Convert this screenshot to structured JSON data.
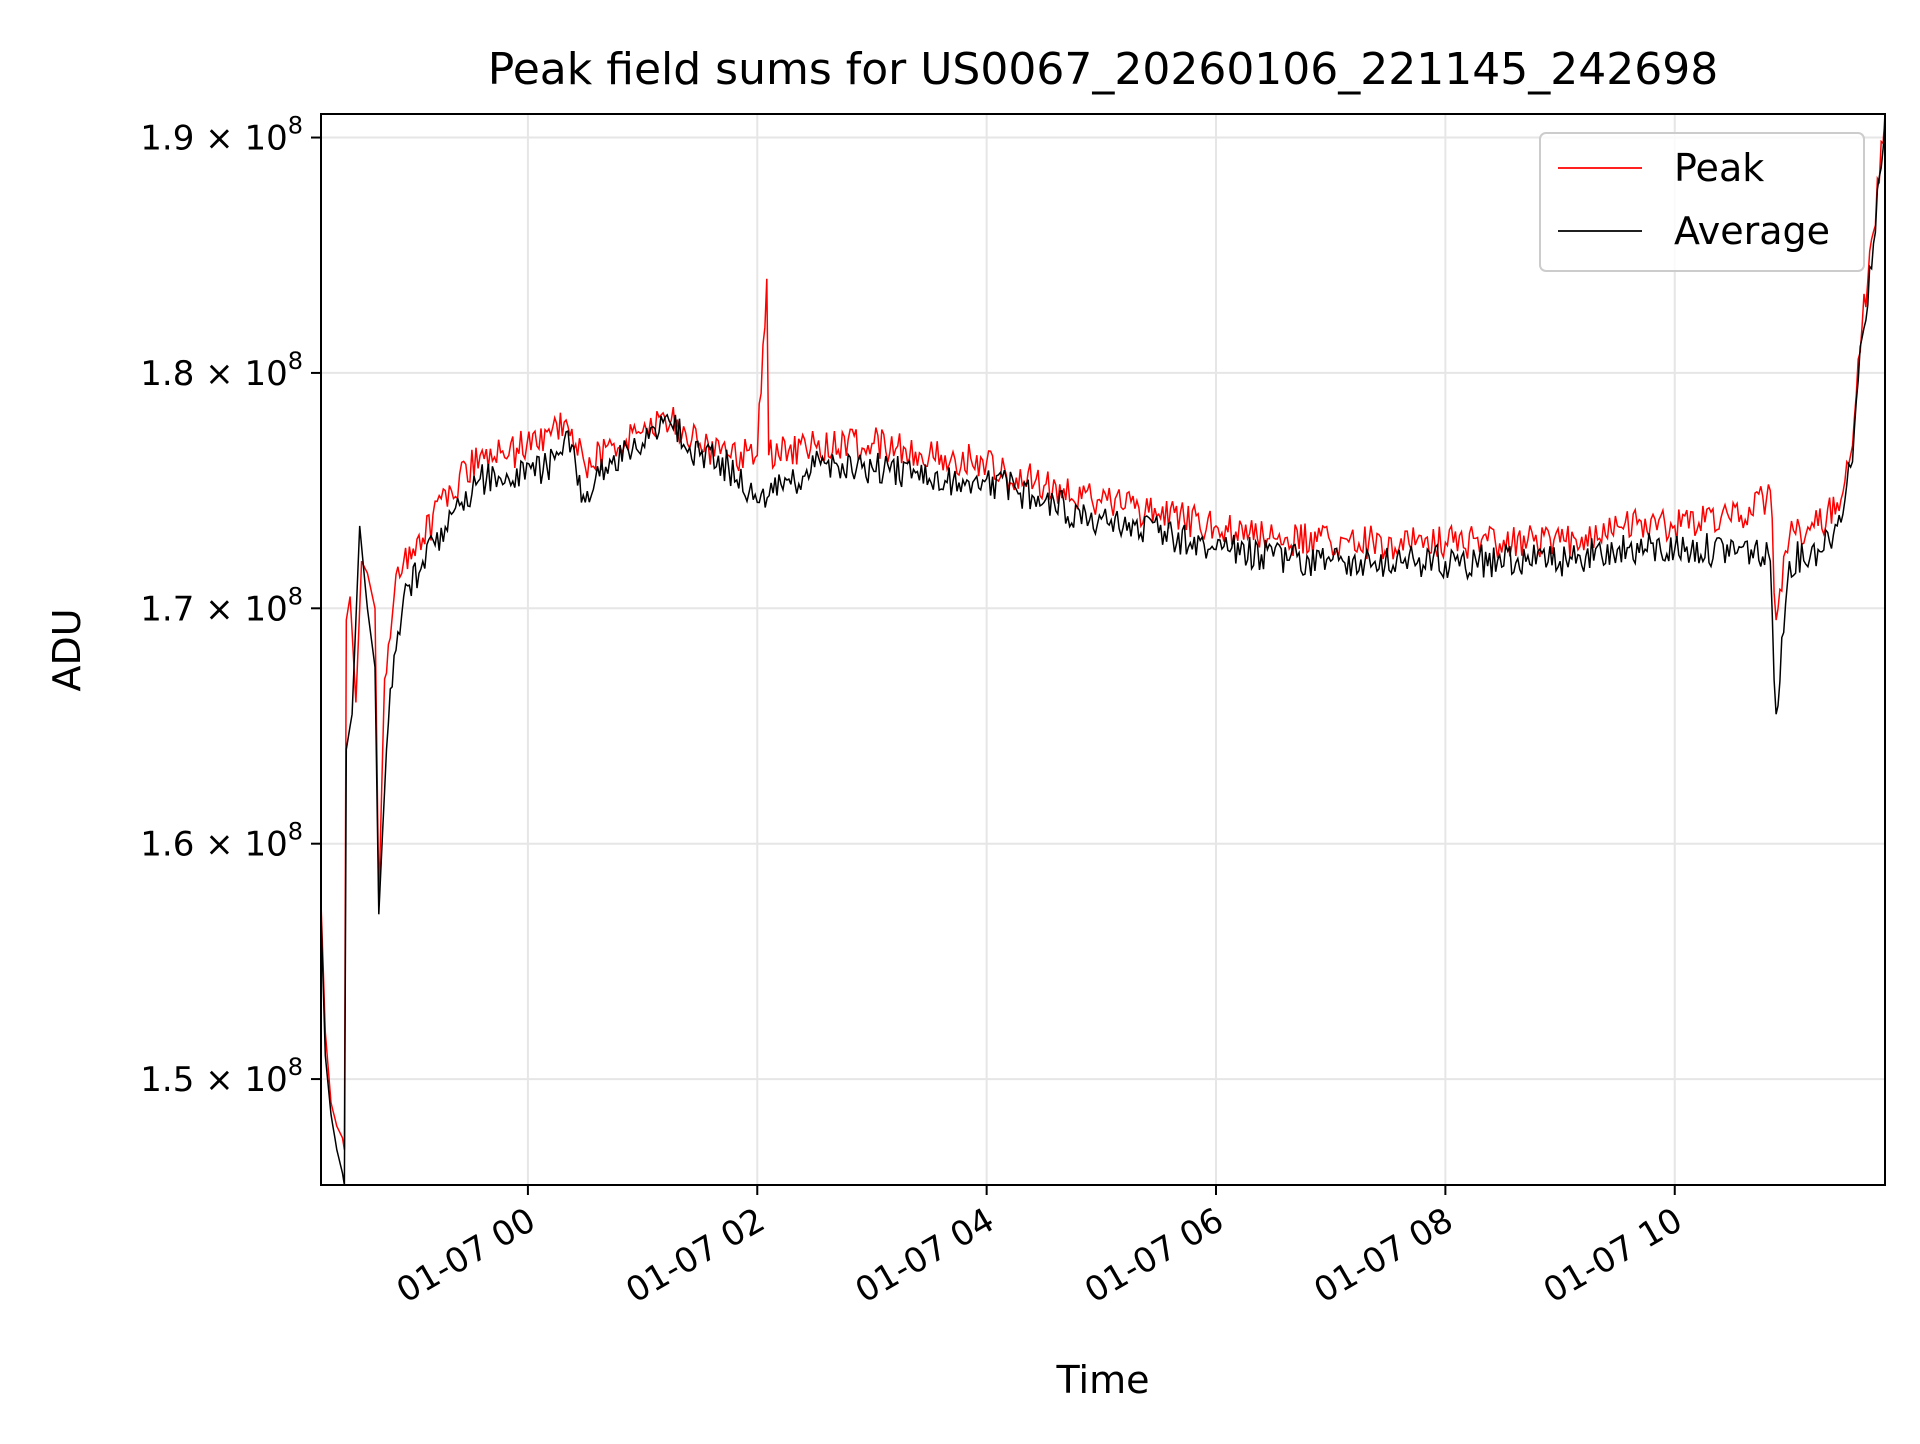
{
  "chart_data": {
    "type": "line",
    "title": "Peak field sums for US0067_20260106_221145_242698",
    "xlabel": "Time",
    "ylabel": "ADU",
    "xlim": [
      "2026-01-06T22:11:45",
      "2026-01-07T11:50:00"
    ],
    "ylim": [
      145500000.0,
      191000000.0
    ],
    "grid": true,
    "legend_position": "top-right",
    "x_ticks": [
      {
        "value": "2026-01-07T00:00",
        "label": "01-07 00"
      },
      {
        "value": "2026-01-07T02:00",
        "label": "01-07 02"
      },
      {
        "value": "2026-01-07T04:00",
        "label": "01-07 04"
      },
      {
        "value": "2026-01-07T06:00",
        "label": "01-07 06"
      },
      {
        "value": "2026-01-07T08:00",
        "label": "01-07 08"
      },
      {
        "value": "2026-01-07T10:00",
        "label": "01-07 10"
      }
    ],
    "y_ticks": [
      {
        "value": 150000000.0,
        "mantissa": "1.5",
        "base": "× 10",
        "exp": "8"
      },
      {
        "value": 160000000.0,
        "mantissa": "1.6",
        "base": "× 10",
        "exp": "8"
      },
      {
        "value": 170000000.0,
        "mantissa": "1.7",
        "base": "× 10",
        "exp": "8"
      },
      {
        "value": 180000000.0,
        "mantissa": "1.8",
        "base": "× 10",
        "exp": "8"
      },
      {
        "value": 190000000.0,
        "mantissa": "1.9",
        "base": "× 10",
        "exp": "8"
      }
    ],
    "series": [
      {
        "name": "Peak",
        "color": "#ff0000",
        "points": [
          [
            "2026-01-06T22:11:45",
            157500000.0
          ],
          [
            "2026-01-06T22:14",
            152000000.0
          ],
          [
            "2026-01-06T22:17",
            149000000.0
          ],
          [
            "2026-01-06T22:20",
            148000000.0
          ],
          [
            "2026-01-06T22:23",
            147500000.0
          ],
          [
            "2026-01-06T22:24",
            147000000.0
          ],
          [
            "2026-01-06T22:25",
            169500000.0
          ],
          [
            "2026-01-06T22:27",
            170500000.0
          ],
          [
            "2026-01-06T22:30",
            166000000.0
          ],
          [
            "2026-01-06T22:33",
            172000000.0
          ],
          [
            "2026-01-06T22:36",
            171500000.0
          ],
          [
            "2026-01-06T22:40",
            170000000.0
          ],
          [
            "2026-01-06T22:42",
            157500000.0
          ],
          [
            "2026-01-06T22:45",
            167000000.0
          ],
          [
            "2026-01-06T22:50",
            170500000.0
          ],
          [
            "2026-01-06T22:55",
            172000000.0
          ],
          [
            "2026-01-06T23:05",
            173000000.0
          ],
          [
            "2026-01-06T23:20",
            175000000.0
          ],
          [
            "2026-01-06T23:35",
            176500000.0
          ],
          [
            "2026-01-06T23:50",
            176500000.0
          ],
          [
            "2026-01-07T00:10",
            177500000.0
          ],
          [
            "2026-01-07T00:20",
            178000000.0
          ],
          [
            "2026-01-07T00:30",
            176000000.0
          ],
          [
            "2026-01-07T00:45",
            177000000.0
          ],
          [
            "2026-01-07T01:00",
            177500000.0
          ],
          [
            "2026-01-07T01:15",
            178000000.0
          ],
          [
            "2026-01-07T01:30",
            177000000.0
          ],
          [
            "2026-01-07T01:45",
            176500000.0
          ],
          [
            "2026-01-07T02:00",
            176500000.0
          ],
          [
            "2026-01-07T02:05",
            184000000.0
          ],
          [
            "2026-01-07T02:06",
            176500000.0
          ],
          [
            "2026-01-07T02:30",
            177000000.0
          ],
          [
            "2026-01-07T03:00",
            177000000.0
          ],
          [
            "2026-01-07T03:30",
            176500000.0
          ],
          [
            "2026-01-07T04:00",
            176200000.0
          ],
          [
            "2026-01-07T04:30",
            175200000.0
          ],
          [
            "2026-01-07T05:00",
            174500000.0
          ],
          [
            "2026-01-07T05:30",
            174000000.0
          ],
          [
            "2026-01-07T06:00",
            173500000.0
          ],
          [
            "2026-01-07T06:30",
            173000000.0
          ],
          [
            "2026-01-07T07:00",
            172800000.0
          ],
          [
            "2026-01-07T08:00",
            172800000.0
          ],
          [
            "2026-01-07T09:00",
            172800000.0
          ],
          [
            "2026-01-07T09:30",
            173500000.0
          ],
          [
            "2026-01-07T10:00",
            173500000.0
          ],
          [
            "2026-01-07T10:40",
            174000000.0
          ],
          [
            "2026-01-07T10:50",
            175000000.0
          ],
          [
            "2026-01-07T10:53",
            169500000.0
          ],
          [
            "2026-01-07T11:00",
            173000000.0
          ],
          [
            "2026-01-07T11:15",
            173500000.0
          ],
          [
            "2026-01-07T11:25",
            174500000.0
          ],
          [
            "2026-01-07T11:32",
            176500000.0
          ],
          [
            "2026-01-07T11:38",
            182000000.0
          ],
          [
            "2026-01-07T11:44",
            186000000.0
          ],
          [
            "2026-01-07T11:50",
            191000000.0
          ]
        ]
      },
      {
        "name": "Average",
        "color": "#000000",
        "points": [
          [
            "2026-01-06T22:11:45",
            157000000.0
          ],
          [
            "2026-01-06T22:14",
            151000000.0
          ],
          [
            "2026-01-06T22:17",
            148500000.0
          ],
          [
            "2026-01-06T22:20",
            147000000.0
          ],
          [
            "2026-01-06T22:23",
            146000000.0
          ],
          [
            "2026-01-06T22:24",
            145500000.0
          ],
          [
            "2026-01-06T22:25",
            164000000.0
          ],
          [
            "2026-01-06T22:28",
            165500000.0
          ],
          [
            "2026-01-06T22:32",
            173500000.0
          ],
          [
            "2026-01-06T22:36",
            170000000.0
          ],
          [
            "2026-01-06T22:40",
            167500000.0
          ],
          [
            "2026-01-06T22:42",
            157000000.0
          ],
          [
            "2026-01-06T22:46",
            164000000.0
          ],
          [
            "2026-01-06T22:50",
            168000000.0
          ],
          [
            "2026-01-06T22:55",
            170500000.0
          ],
          [
            "2026-01-06T23:05",
            172000000.0
          ],
          [
            "2026-01-06T23:20",
            174000000.0
          ],
          [
            "2026-01-06T23:35",
            175500000.0
          ],
          [
            "2026-01-06T23:50",
            175500000.0
          ],
          [
            "2026-01-07T00:10",
            176000000.0
          ],
          [
            "2026-01-07T00:20",
            177500000.0
          ],
          [
            "2026-01-07T00:30",
            174500000.0
          ],
          [
            "2026-01-07T00:45",
            176500000.0
          ],
          [
            "2026-01-07T01:00",
            177000000.0
          ],
          [
            "2026-01-07T01:15",
            177800000.0
          ],
          [
            "2026-01-07T01:30",
            176500000.0
          ],
          [
            "2026-01-07T01:45",
            176000000.0
          ],
          [
            "2026-01-07T02:00",
            174500000.0
          ],
          [
            "2026-01-07T02:30",
            176000000.0
          ],
          [
            "2026-01-07T03:00",
            176000000.0
          ],
          [
            "2026-01-07T03:30",
            175500000.0
          ],
          [
            "2026-01-07T04:00",
            175500000.0
          ],
          [
            "2026-01-07T04:30",
            174500000.0
          ],
          [
            "2026-01-07T05:00",
            173800000.0
          ],
          [
            "2026-01-07T05:30",
            173200000.0
          ],
          [
            "2026-01-07T06:00",
            172500000.0
          ],
          [
            "2026-01-07T06:30",
            172200000.0
          ],
          [
            "2026-01-07T07:00",
            172000000.0
          ],
          [
            "2026-01-07T08:00",
            172000000.0
          ],
          [
            "2026-01-07T09:00",
            172000000.0
          ],
          [
            "2026-01-07T09:30",
            172500000.0
          ],
          [
            "2026-01-07T10:00",
            172500000.0
          ],
          [
            "2026-01-07T10:40",
            172500000.0
          ],
          [
            "2026-01-07T10:50",
            172000000.0
          ],
          [
            "2026-01-07T10:53",
            165500000.0
          ],
          [
            "2026-01-07T11:00",
            172000000.0
          ],
          [
            "2026-01-07T11:15",
            172500000.0
          ],
          [
            "2026-01-07T11:25",
            173500000.0
          ],
          [
            "2026-01-07T11:32",
            176000000.0
          ],
          [
            "2026-01-07T11:38",
            181500000.0
          ],
          [
            "2026-01-07T11:44",
            185500000.0
          ],
          [
            "2026-01-07T11:50",
            190500000.0
          ]
        ]
      }
    ]
  }
}
